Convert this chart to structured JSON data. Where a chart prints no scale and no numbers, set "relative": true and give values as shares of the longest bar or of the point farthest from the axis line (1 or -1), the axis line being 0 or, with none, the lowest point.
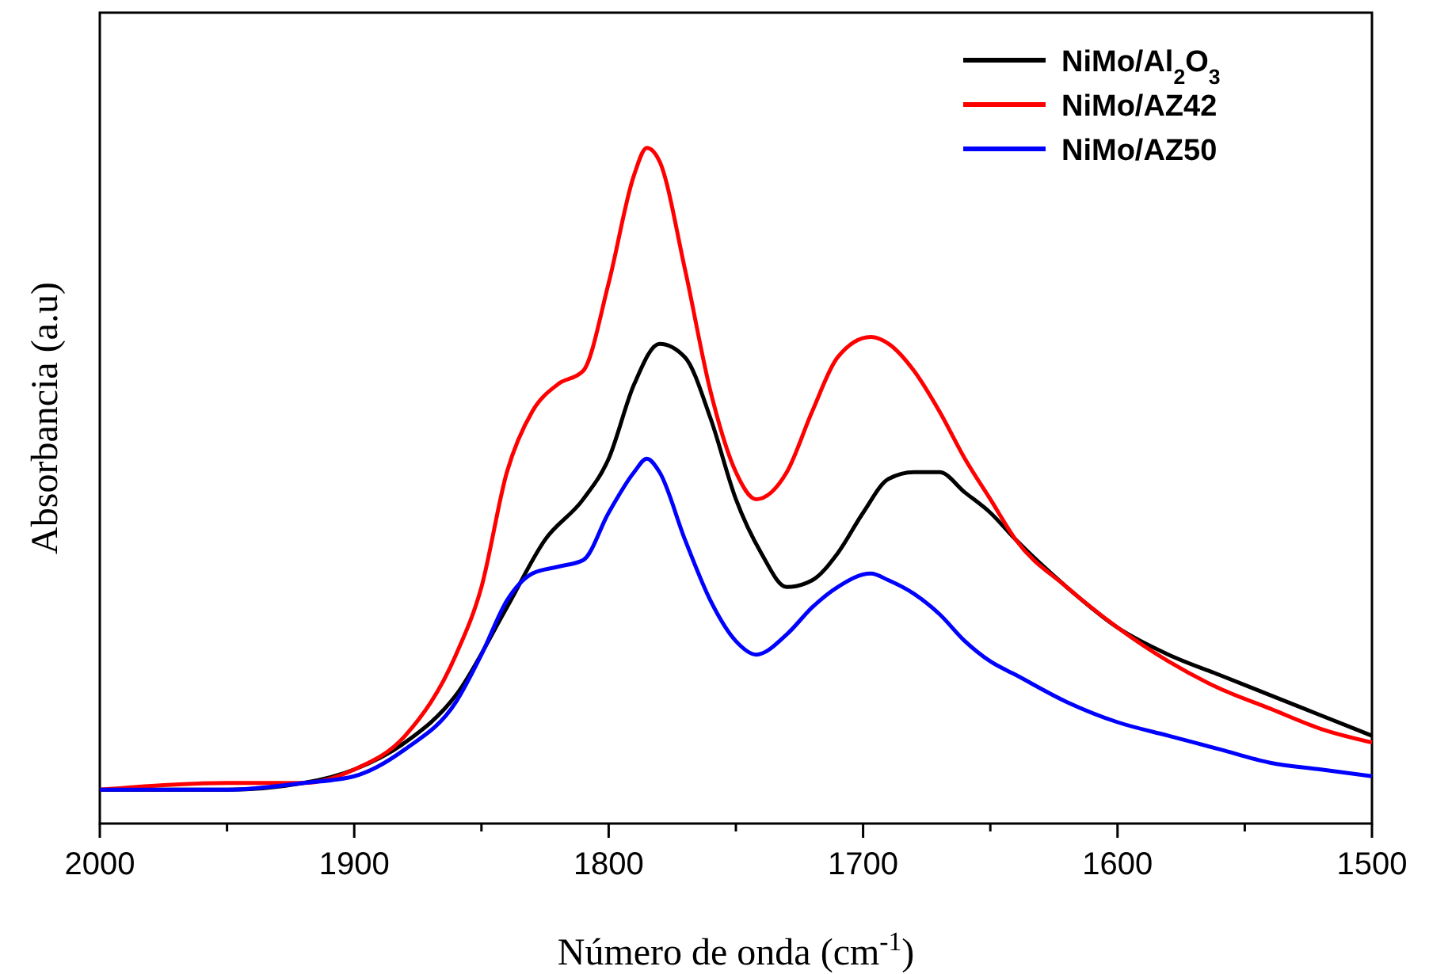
{
  "chart_data": {
    "type": "line",
    "relative": true,
    "xlabel": "Número de onda (cm$^{-1}$)",
    "ylabel": "Absorbancia (a.u)",
    "xlim": [
      2000,
      1500
    ],
    "xticks": [
      2000,
      {
        "value": 1950,
        "label": null
      },
      1900,
      {
        "value": 1850,
        "label": null
      },
      1800,
      {
        "value": 1750,
        "label": null
      },
      1700,
      {
        "value": 1650,
        "label": null
      },
      1600,
      {
        "value": 1550,
        "label": null
      },
      1500
    ],
    "legend": "top right",
    "marker": "none",
    "line_style": "solid",
    "grid": false,
    "series": [
      {
        "name": "NiMo/Al$_{2}$O$_{3}$",
        "color": "#000000",
        "x": [
          2000,
          1950,
          1920,
          1900,
          1880,
          1860,
          1840,
          1825,
          1810,
          1800,
          1790,
          1780,
          1770,
          1760,
          1750,
          1740,
          1730,
          1720,
          1710,
          1700,
          1690,
          1680,
          1670,
          1660,
          1650,
          1640,
          1620,
          1600,
          1580,
          1560,
          1540,
          1520,
          1500
        ],
        "values": [
          0.05,
          0.05,
          0.06,
          0.08,
          0.12,
          0.19,
          0.32,
          0.42,
          0.48,
          0.54,
          0.65,
          0.71,
          0.69,
          0.6,
          0.48,
          0.4,
          0.35,
          0.36,
          0.4,
          0.46,
          0.51,
          0.52,
          0.52,
          0.49,
          0.46,
          0.42,
          0.35,
          0.29,
          0.25,
          0.22,
          0.19,
          0.16,
          0.13
        ]
      },
      {
        "name": "NiMo/AZ42",
        "color": "#ff0000",
        "x": [
          2000,
          1950,
          1920,
          1900,
          1880,
          1860,
          1850,
          1840,
          1830,
          1820,
          1810,
          1800,
          1790,
          1785,
          1780,
          1770,
          1760,
          1750,
          1742,
          1730,
          1720,
          1710,
          1697,
          1690,
          1680,
          1670,
          1660,
          1650,
          1640,
          1620,
          1600,
          1580,
          1560,
          1540,
          1520,
          1500
        ],
        "values": [
          0.05,
          0.06,
          0.06,
          0.08,
          0.13,
          0.25,
          0.35,
          0.52,
          0.61,
          0.65,
          0.67,
          0.8,
          0.96,
          1.0,
          0.98,
          0.82,
          0.64,
          0.52,
          0.48,
          0.52,
          0.61,
          0.69,
          0.72,
          0.71,
          0.67,
          0.61,
          0.54,
          0.48,
          0.42,
          0.35,
          0.29,
          0.24,
          0.2,
          0.17,
          0.14,
          0.12
        ]
      },
      {
        "name": "NiMo/AZ50",
        "color": "#0000ff",
        "x": [
          2000,
          1950,
          1920,
          1900,
          1880,
          1860,
          1850,
          1840,
          1830,
          1820,
          1810,
          1800,
          1790,
          1785,
          1780,
          1770,
          1760,
          1750,
          1742,
          1730,
          1720,
          1710,
          1697,
          1690,
          1680,
          1670,
          1660,
          1650,
          1640,
          1620,
          1600,
          1580,
          1560,
          1540,
          1520,
          1500
        ],
        "values": [
          0.05,
          0.05,
          0.06,
          0.07,
          0.11,
          0.18,
          0.25,
          0.33,
          0.37,
          0.38,
          0.39,
          0.46,
          0.52,
          0.54,
          0.52,
          0.42,
          0.33,
          0.27,
          0.25,
          0.28,
          0.32,
          0.35,
          0.37,
          0.36,
          0.34,
          0.31,
          0.27,
          0.24,
          0.22,
          0.18,
          0.15,
          0.13,
          0.11,
          0.09,
          0.08,
          0.07
        ]
      }
    ]
  }
}
